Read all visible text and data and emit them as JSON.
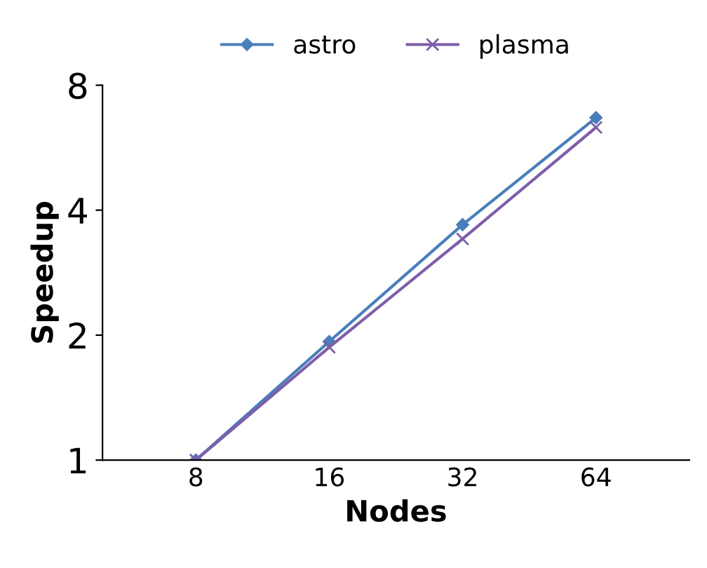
{
  "chart_data": {
    "type": "line",
    "xlabel": "Nodes",
    "ylabel": "Speedup",
    "categories": [
      "8",
      "16",
      "32",
      "64"
    ],
    "series": [
      {
        "name": "astro",
        "color": "#4a7ebb",
        "marker": "diamond",
        "values": [
          1,
          1.93,
          3.69,
          6.68
        ]
      },
      {
        "name": "plasma",
        "color": "#7e5ea8",
        "marker": "cross",
        "values": [
          1,
          1.87,
          3.41,
          6.33
        ]
      }
    ],
    "log": "y",
    "ylim": [
      1,
      8
    ],
    "yticks": [
      1,
      2,
      4,
      8
    ],
    "legend": "top",
    "grid": false,
    "line_style": "solid"
  }
}
